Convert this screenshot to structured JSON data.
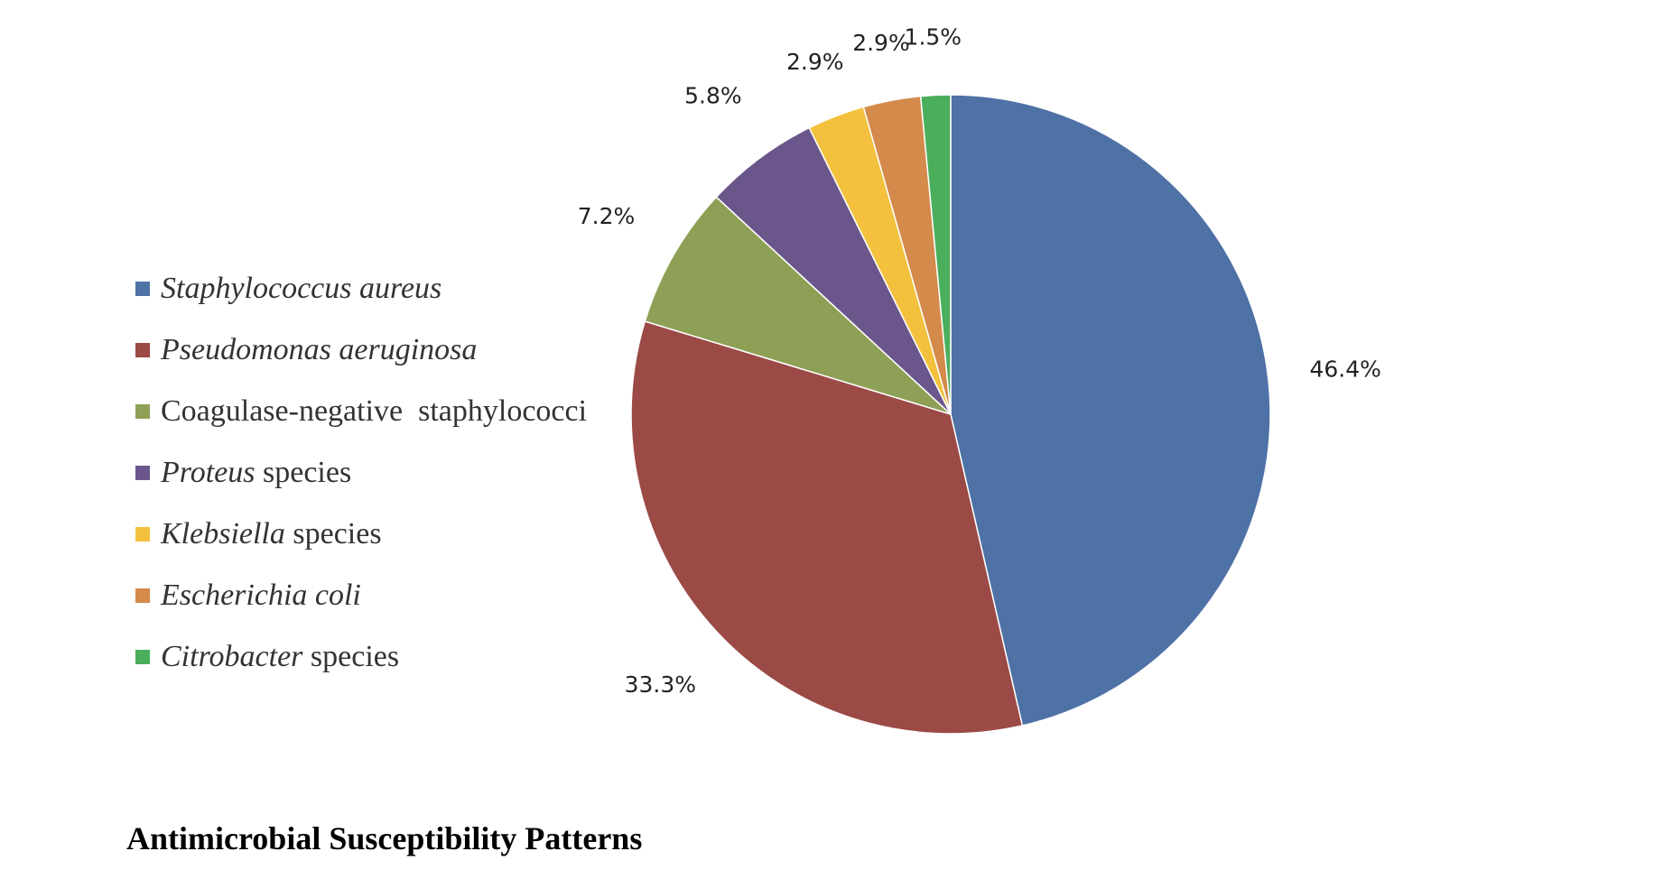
{
  "colors": {
    "staph_aureus": "#4e71a6",
    "pseudomonas": "#9b4a46",
    "cons": "#8ea056",
    "proteus": "#6b568b",
    "klebsiella": "#f3c13e",
    "ecoli": "#d38a4b",
    "citrobacter": "#4aae5c"
  },
  "chart_data": {
    "type": "pie",
    "slices": [
      {
        "italic": "Staphylococcus aureus",
        "plain": "",
        "value": 46.4,
        "label": "46.4%",
        "color": "#4e71a6"
      },
      {
        "italic": "Pseudomonas aeruginosa",
        "plain": "",
        "value": 33.3,
        "label": "33.3%",
        "color": "#9b4a46"
      },
      {
        "italic": "",
        "plain": "Coagulase-negative  staphylococci",
        "value": 7.2,
        "label": "7.2%",
        "color": "#8ea056"
      },
      {
        "italic": "Proteus",
        "plain": " species",
        "value": 5.8,
        "label": "5.8%",
        "color": "#6b568b"
      },
      {
        "italic": "Klebsiella",
        "plain": " species",
        "value": 2.9,
        "label": "2.9%",
        "color": "#f3c13e"
      },
      {
        "italic": "Escherichia coli",
        "plain": "",
        "value": 2.9,
        "label": "2.9%",
        "color": "#d38a4b"
      },
      {
        "italic": "Citrobacter",
        "plain": " species",
        "value": 1.5,
        "label": "1.5%",
        "color": "#4aae5c"
      }
    ],
    "legend_position": "left"
  },
  "heading": "Antimicrobial Susceptibility Patterns"
}
